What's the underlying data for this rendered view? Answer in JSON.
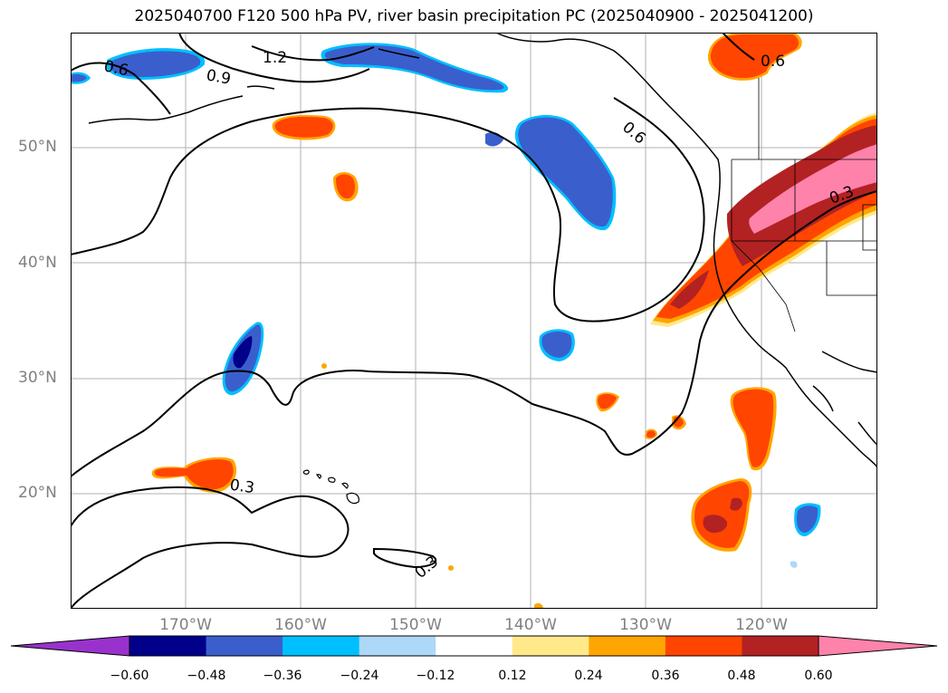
{
  "title": "2025040700 F120 500 hPa PV, river basin precipitation PC (2025040900 - 2025041200)",
  "latitude_labels": [
    "50°N",
    "40°N",
    "30°N",
    "20°N"
  ],
  "longitude_labels": [
    "170°W",
    "160°W",
    "150°W",
    "140°W",
    "130°W",
    "120°W"
  ],
  "contour_labels": [
    "0.6",
    "0.9",
    "1.2",
    "0.6",
    "0.6",
    "0.3",
    "0.3",
    "0.3"
  ],
  "colorbar": {
    "colors": [
      "#9932cc",
      "#00008b",
      "#3a5fcd",
      "#00bfff",
      "#add8f7",
      "#ffffff",
      "#ffe98a",
      "#ffa500",
      "#ff4500",
      "#b22222",
      "#ff82ab"
    ],
    "tick_labels": [
      "−0.60",
      "−0.48",
      "−0.36",
      "−0.24",
      "−0.12",
      "0.12",
      "0.24",
      "0.36",
      "0.48",
      "0.60"
    ]
  },
  "colors": {
    "land_line": "#000000",
    "grid": "#b0b0b0",
    "contour": "#000000"
  }
}
